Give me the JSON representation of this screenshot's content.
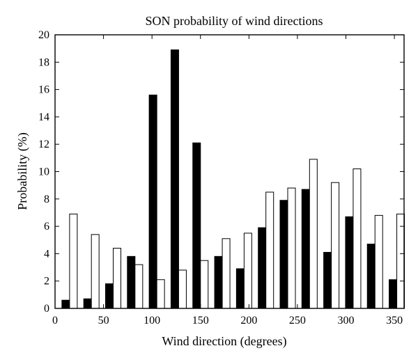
{
  "chart_data": {
    "type": "bar",
    "title": "SON probability of wind directions",
    "xlabel": "Wind direction (degrees)",
    "ylabel": "Probability (%)",
    "xlim": [
      0,
      360
    ],
    "ylim": [
      0,
      20
    ],
    "x_ticks": [
      0,
      50,
      100,
      150,
      200,
      250,
      300,
      350
    ],
    "y_ticks": [
      0,
      2,
      4,
      6,
      8,
      10,
      12,
      14,
      16,
      18,
      20
    ],
    "x_tick_labels": [
      "0",
      "50",
      "100",
      "150",
      "200",
      "250",
      "300",
      "350"
    ],
    "y_tick_labels": [
      "0",
      "2",
      "4",
      "6",
      "8",
      "10",
      "12",
      "14",
      "16",
      "18",
      "20"
    ],
    "grid": false,
    "legend": "none",
    "categories": [
      15,
      37.5,
      60,
      82.5,
      105,
      127.5,
      150,
      172.5,
      195,
      217.5,
      240,
      262.5,
      285,
      307.5,
      330,
      352.5
    ],
    "series": [
      {
        "fill": "#000000",
        "stroke": "#000000",
        "values": [
          0.6,
          0.7,
          1.8,
          3.8,
          15.6,
          18.9,
          12.1,
          3.8,
          2.9,
          5.9,
          7.9,
          8.7,
          4.1,
          6.7,
          4.7,
          2.1
        ]
      },
      {
        "fill": "#ffffff",
        "stroke": "#000000",
        "values": [
          6.9,
          5.4,
          4.4,
          3.2,
          2.1,
          2.8,
          3.5,
          5.1,
          5.5,
          8.5,
          8.8,
          10.9,
          9.2,
          10.2,
          6.8,
          6.9
        ]
      }
    ]
  }
}
